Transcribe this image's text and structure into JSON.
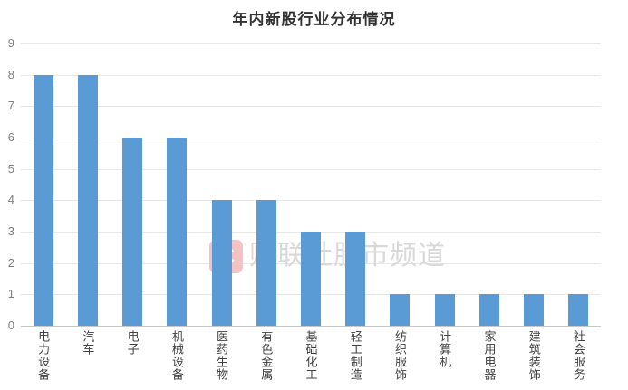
{
  "title": "年内新股行业分布情况",
  "watermark": {
    "logo_letter": "C",
    "text": "财联社股市频道"
  },
  "colors": {
    "bar": "#5B9BD5",
    "gridline": "#E7E7E7",
    "axis_line": "#C9C9C9",
    "y_label": "#7F7F7F",
    "x_label": "#404040",
    "title": "#333333",
    "watermark_text": "#D8D8D8",
    "watermark_logo_bg": "#F4C2C2",
    "watermark_logo_fg": "#FFFFFF"
  },
  "chart_data": {
    "type": "bar",
    "title": "年内新股行业分布情况",
    "categories": [
      "电力设备",
      "汽车",
      "电子",
      "机械设备",
      "医药生物",
      "有色金属",
      "基础化工",
      "轻工制造",
      "纺织服饰",
      "计算机",
      "家用电器",
      "建筑装饰",
      "社会服务"
    ],
    "values": [
      8,
      8,
      6,
      6,
      4,
      4,
      3,
      3,
      1,
      1,
      1,
      1,
      1
    ],
    "xlabel": "",
    "ylabel": "",
    "ylim": [
      0,
      9
    ],
    "ytick_interval": 1,
    "yticks": [
      0,
      1,
      2,
      3,
      4,
      5,
      6,
      7,
      8,
      9
    ],
    "grid": true,
    "legend": false,
    "bar_color": "#5B9BD5",
    "x_label_orientation": "vertical"
  }
}
